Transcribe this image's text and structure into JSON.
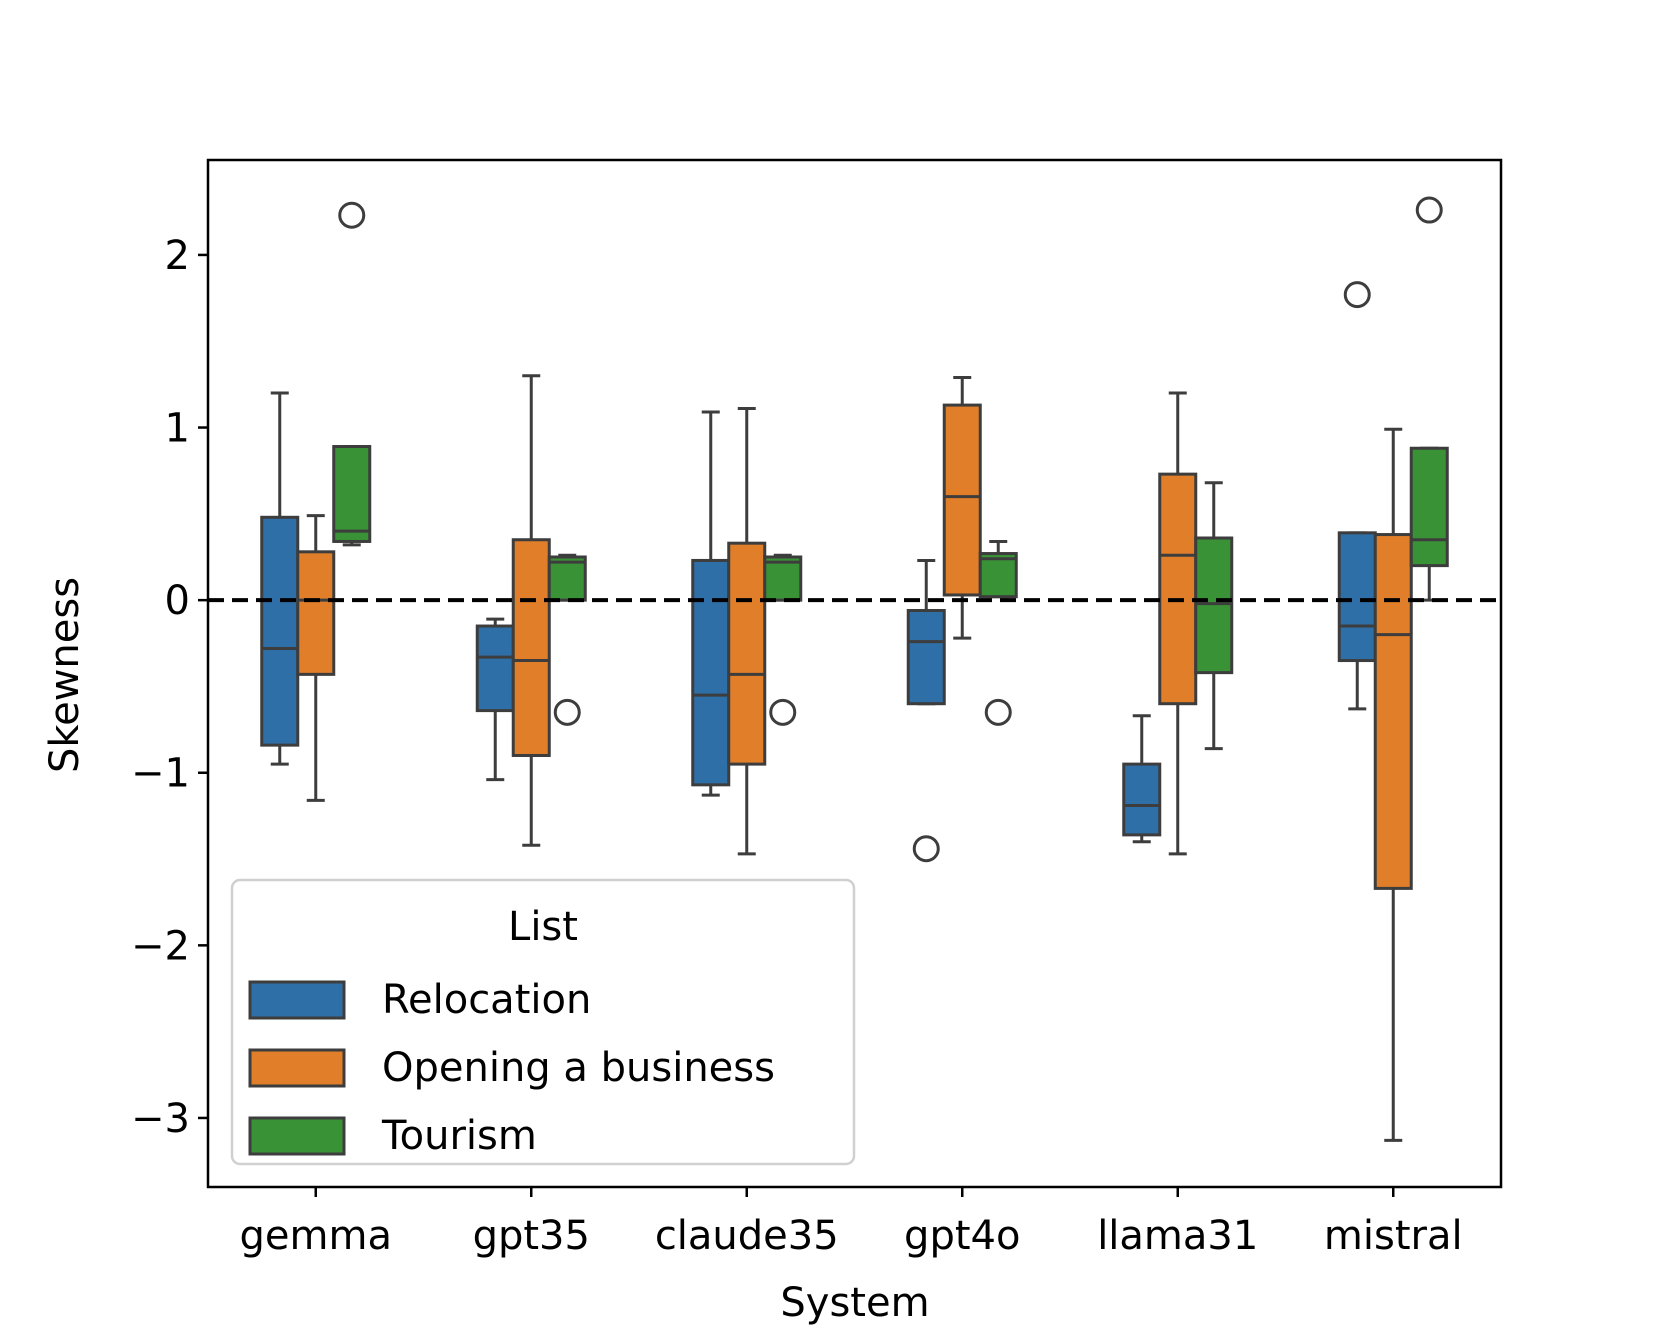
{
  "chart_data": {
    "type": "boxplot",
    "title": "",
    "xlabel": "System",
    "ylabel": "Skewness",
    "ylim": [
      -3.4,
      2.55
    ],
    "yticks": [
      2,
      1,
      0,
      -1,
      -2,
      -3
    ],
    "ytick_labels": [
      "2",
      "1",
      "0",
      "−1",
      "−2",
      "−3"
    ],
    "reference_line": 0,
    "categories": [
      "gemma",
      "gpt35",
      "claude35",
      "gpt4o",
      "llama31",
      "mistral"
    ],
    "legend": {
      "title": "List",
      "position": "lower-left"
    },
    "series": [
      {
        "name": "Relocation",
        "color": "#2f6fa8",
        "boxes": [
          {
            "q1": -0.84,
            "median": -0.28,
            "q3": 0.48,
            "whislo": -0.95,
            "whishi": 1.2,
            "fliers": []
          },
          {
            "q1": -0.64,
            "median": -0.33,
            "q3": -0.15,
            "whislo": -1.04,
            "whishi": -0.11,
            "fliers": []
          },
          {
            "q1": -1.07,
            "median": -0.55,
            "q3": 0.23,
            "whislo": -1.13,
            "whishi": 1.09,
            "fliers": []
          },
          {
            "q1": -0.6,
            "median": -0.24,
            "q3": -0.06,
            "whislo": -0.6,
            "whishi": 0.23,
            "fliers": [
              -1.44
            ]
          },
          {
            "q1": -1.36,
            "median": -1.19,
            "q3": -0.95,
            "whislo": -1.4,
            "whishi": -0.67,
            "fliers": []
          },
          {
            "q1": -0.35,
            "median": -0.15,
            "q3": 0.39,
            "whislo": -0.63,
            "whishi": 0.39,
            "fliers": [
              1.77
            ]
          }
        ]
      },
      {
        "name": "Opening a business",
        "color": "#e07e29",
        "boxes": [
          {
            "q1": -0.43,
            "median": 0.0,
            "q3": 0.28,
            "whislo": -1.16,
            "whishi": 0.49,
            "fliers": []
          },
          {
            "q1": -0.9,
            "median": -0.35,
            "q3": 0.35,
            "whislo": -1.42,
            "whishi": 1.3,
            "fliers": []
          },
          {
            "q1": -0.95,
            "median": -0.43,
            "q3": 0.33,
            "whislo": -1.47,
            "whishi": 1.11,
            "fliers": []
          },
          {
            "q1": 0.03,
            "median": 0.6,
            "q3": 1.13,
            "whislo": -0.22,
            "whishi": 1.29,
            "fliers": []
          },
          {
            "q1": -0.6,
            "median": 0.26,
            "q3": 0.73,
            "whislo": -1.47,
            "whishi": 1.2,
            "fliers": []
          },
          {
            "q1": -1.67,
            "median": -0.2,
            "q3": 0.38,
            "whislo": -3.13,
            "whishi": 0.99,
            "fliers": []
          }
        ]
      },
      {
        "name": "Tourism",
        "color": "#3a9236",
        "boxes": [
          {
            "q1": 0.34,
            "median": 0.4,
            "q3": 0.89,
            "whislo": 0.32,
            "whishi": 0.89,
            "fliers": [
              2.23
            ]
          },
          {
            "q1": 0.0,
            "median": 0.22,
            "q3": 0.25,
            "whislo": 0.0,
            "whishi": 0.26,
            "fliers": [
              -0.65
            ]
          },
          {
            "q1": 0.0,
            "median": 0.22,
            "q3": 0.25,
            "whislo": 0.0,
            "whishi": 0.26,
            "fliers": [
              -0.65
            ]
          },
          {
            "q1": 0.02,
            "median": 0.24,
            "q3": 0.27,
            "whislo": 0.02,
            "whishi": 0.34,
            "fliers": [
              -0.65
            ]
          },
          {
            "q1": -0.42,
            "median": -0.02,
            "q3": 0.36,
            "whislo": -0.86,
            "whishi": 0.68,
            "fliers": []
          },
          {
            "q1": 0.2,
            "median": 0.35,
            "q3": 0.88,
            "whislo": 0.0,
            "whishi": 0.88,
            "fliers": [
              2.26
            ]
          }
        ]
      }
    ]
  }
}
